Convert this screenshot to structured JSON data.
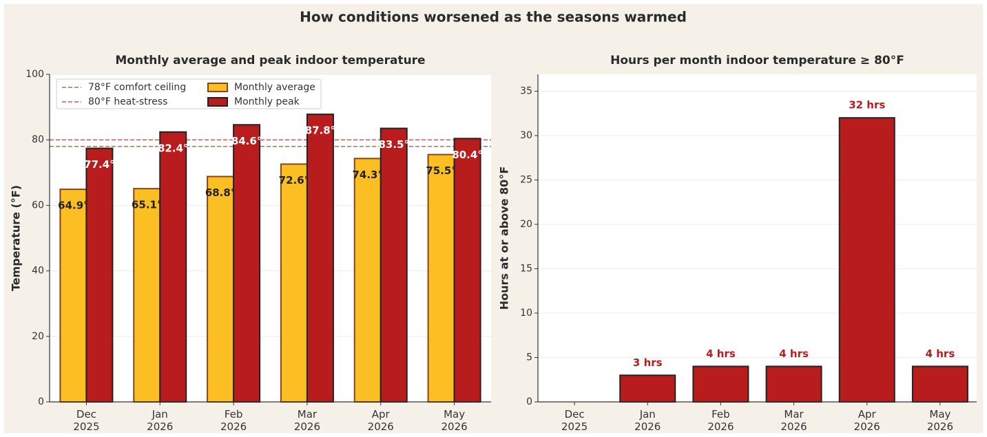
{
  "title": "How conditions worsened as the seasons warmed",
  "chart_data": [
    {
      "type": "bar",
      "title": "Monthly average and peak indoor temperature",
      "ylabel": "Temperature (°F)",
      "categories": [
        "Dec\n2025",
        "Jan\n2026",
        "Feb\n2026",
        "Mar\n2026",
        "Apr\n2026",
        "May\n2026"
      ],
      "series": [
        {
          "name": "Monthly average",
          "color": "#fbbf24",
          "edgecolor": "#8b4513",
          "label_color": "#222222",
          "values": [
            64.9,
            65.1,
            68.8,
            72.6,
            74.3,
            75.5
          ],
          "value_labels": [
            "64.9°",
            "65.1°",
            "68.8°",
            "72.6°",
            "74.3°",
            "75.5°"
          ]
        },
        {
          "name": "Monthly peak",
          "color": "#b91c1c",
          "edgecolor": "#222222",
          "label_color": "#ffffff",
          "values": [
            77.4,
            82.4,
            84.6,
            87.8,
            83.5,
            80.4
          ],
          "value_labels": [
            "77.4°",
            "82.4°",
            "84.6°",
            "87.8°",
            "83.5°",
            "80.4°"
          ]
        }
      ],
      "reference_lines": [
        {
          "value": 78,
          "label": "78°F comfort ceiling",
          "color": "#a0785a"
        },
        {
          "value": 80,
          "label": "80°F heat-stress",
          "color": "#d9534f"
        }
      ],
      "ylim": [
        0,
        100
      ],
      "yticks": [
        0,
        20,
        40,
        60,
        80,
        100
      ],
      "grid": true,
      "legend": "upper left"
    },
    {
      "type": "bar",
      "title": "Hours per month indoor temperature ≥ 80°F",
      "ylabel": "Hours at or above 80°F",
      "categories": [
        "Dec\n2025",
        "Jan\n2026",
        "Feb\n2026",
        "Mar\n2026",
        "Apr\n2026",
        "May\n2026"
      ],
      "values": [
        0,
        3,
        4,
        4,
        32,
        4
      ],
      "value_labels": [
        null,
        "3 hrs",
        "4 hrs",
        "4 hrs",
        "32 hrs",
        "4 hrs"
      ],
      "color": "#b91c1c",
      "edgecolor": "#222222",
      "label_color": "#b91c1c",
      "ylim": [
        0,
        36.9
      ],
      "yticks": [
        0,
        5,
        10,
        15,
        20,
        25,
        30,
        35
      ],
      "grid": true
    }
  ]
}
